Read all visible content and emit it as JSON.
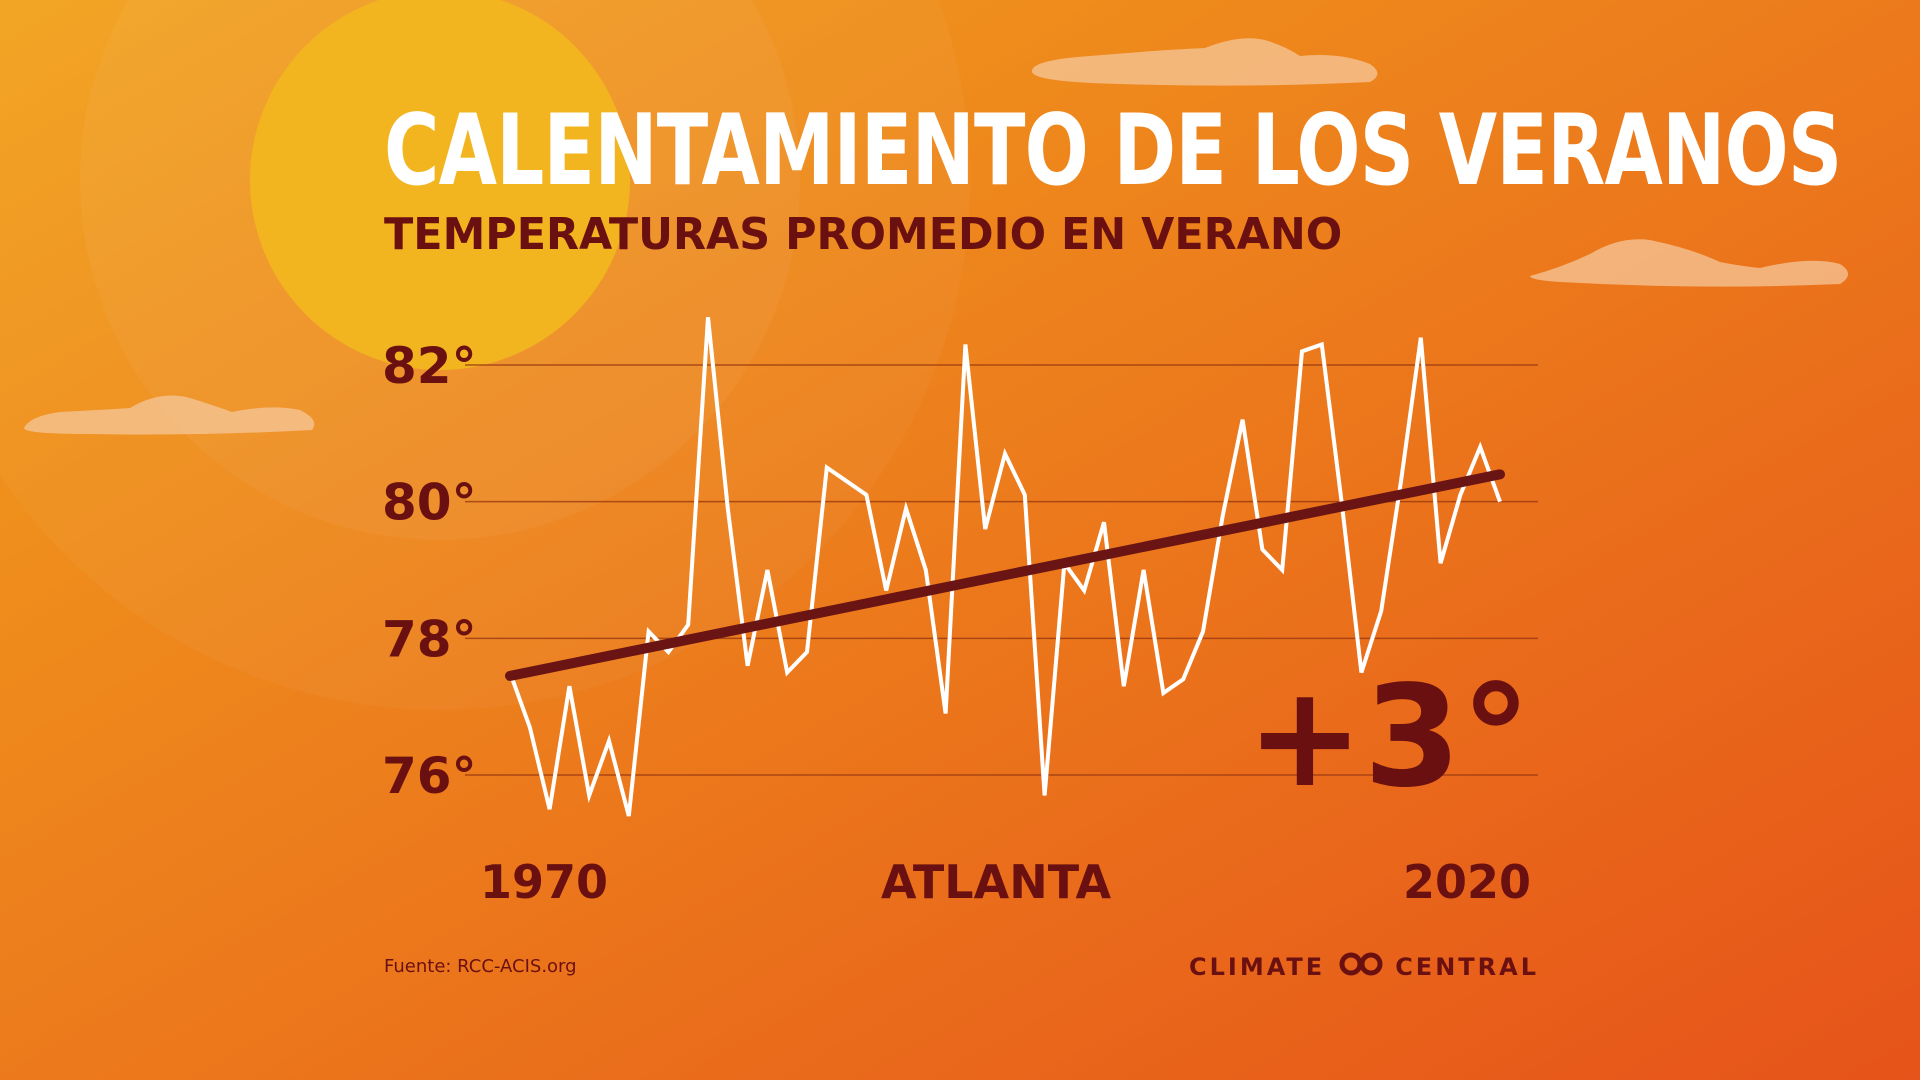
{
  "colors": {
    "bg_top_left": "#f2a21d",
    "bg_bottom_right": "#e6531a",
    "sun": "#f2b520",
    "dark_text": "#6b1010",
    "line": "#ffffff",
    "trend": "#6b1414",
    "gridline": "#9a3a12",
    "cloud": "#f6c79a"
  },
  "title": "CALENTAMIENTO DE LOS VERANOS",
  "subtitle": "TEMPERATURAS PROMEDIO EN VERANO",
  "location": "ATLANTA",
  "change_label": "+3°",
  "source": "Fuente: RCC-ACIS.org",
  "brand": {
    "left": "CLIMATE",
    "right": "CENTRAL",
    "icon": "climate-central-logo-icon"
  },
  "chart_data": {
    "type": "line",
    "x_start_label": "1970",
    "x_end_label": "2020",
    "xlim": [
      1970,
      2020
    ],
    "ylim": [
      75.3,
      83.0
    ],
    "yticks": [
      {
        "value": 82,
        "label": "82°"
      },
      {
        "value": 80,
        "label": "80°"
      },
      {
        "value": 78,
        "label": "78°"
      },
      {
        "value": 76,
        "label": "76°"
      }
    ],
    "grid": true,
    "series": [
      {
        "x": [
          1970,
          1971,
          1972,
          1973,
          1974,
          1975,
          1976,
          1977,
          1978,
          1979,
          1980,
          1981,
          1982,
          1983,
          1984,
          1985,
          1986,
          1987,
          1988,
          1989,
          1990,
          1991,
          1992,
          1993,
          1994,
          1995,
          1996,
          1997,
          1998,
          1999,
          2000,
          2001,
          2002,
          2003,
          2004,
          2005,
          2006,
          2007,
          2008,
          2009,
          2010,
          2011,
          2012,
          2013,
          2014,
          2015,
          2016,
          2017,
          2018,
          2019,
          2020
        ],
        "y": [
          77.5,
          76.7,
          75.5,
          77.3,
          75.7,
          76.5,
          75.4,
          78.1,
          77.8,
          78.2,
          82.7,
          79.9,
          77.6,
          79.0,
          77.5,
          77.8,
          80.5,
          80.3,
          80.1,
          78.7,
          79.9,
          79.0,
          76.9,
          82.3,
          79.6,
          80.7,
          80.1,
          75.7,
          79.1,
          78.7,
          79.7,
          77.3,
          79.0,
          77.2,
          77.4,
          78.1,
          79.8,
          81.2,
          79.3,
          79.0,
          82.2,
          82.3,
          80.0,
          77.5,
          78.4,
          80.3,
          82.4,
          79.1,
          80.1,
          80.8,
          80.0
        ]
      }
    ],
    "trend": {
      "start": [
        1970,
        77.45
      ],
      "end": [
        2020,
        80.4
      ]
    }
  }
}
